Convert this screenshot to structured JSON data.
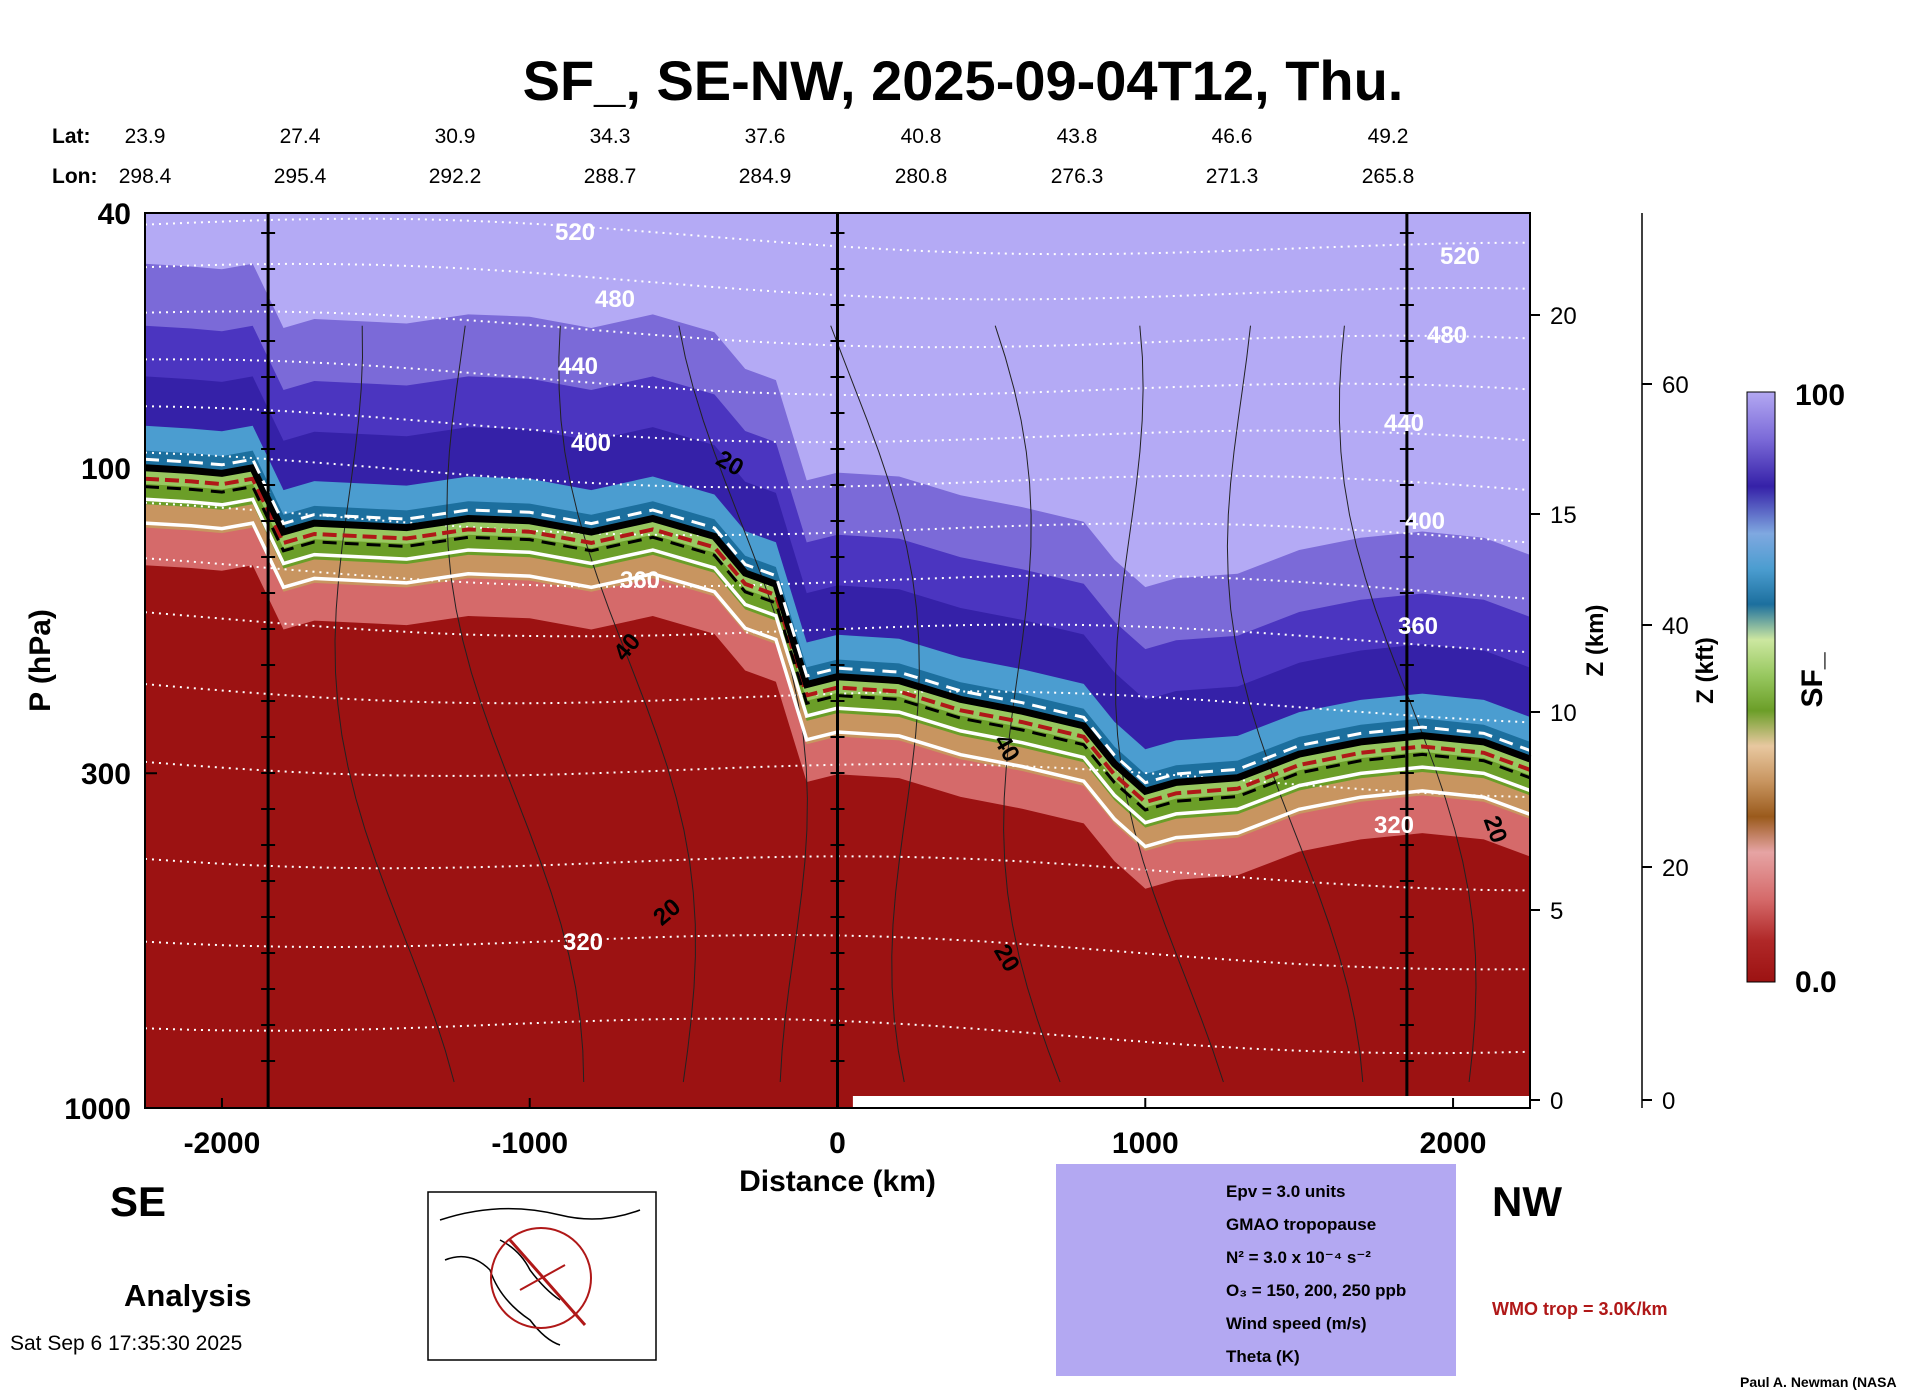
{
  "title": "SF_, SE-NW, 2025-09-04T12, Thu.",
  "header": {
    "lat_label": "Lat:",
    "lon_label": "Lon:",
    "lat": [
      "23.9",
      "27.4",
      "30.9",
      "34.3",
      "37.6",
      "40.8",
      "43.8",
      "46.6",
      "49.2"
    ],
    "lon": [
      "298.4",
      "295.4",
      "292.2",
      "288.7",
      "284.9",
      "280.8",
      "276.3",
      "271.3",
      "265.8"
    ]
  },
  "chart_data": {
    "type": "heatmap",
    "xlabel": "Distance (km)",
    "ylabel": "P (hPa)",
    "y2label": "Z (km)",
    "y3label": "Z (kft)",
    "xlim": [
      -2250,
      2250
    ],
    "ylim": [
      1000,
      40
    ],
    "yscale": "log",
    "x_ticks": [
      "-2000",
      "-1000",
      "0",
      "1000",
      "2000"
    ],
    "y_ticks": [
      "40",
      "100",
      "300",
      "1000"
    ],
    "z_km_ticks": [
      "20",
      "15",
      "10",
      "5",
      "0"
    ],
    "z_kft_ticks": [
      "60",
      "40",
      "20",
      "0"
    ],
    "vertical_markers_km": [
      -1850,
      0,
      1850
    ],
    "colorbar": {
      "label": "SF_",
      "max_label": "100",
      "min_label": "0.0"
    },
    "theta_contour_labels": [
      "520",
      "480",
      "440",
      "400",
      "360",
      "320"
    ],
    "wind_contour_labels": [
      "20",
      "40"
    ],
    "tropopause_pressure_hpa": [
      {
        "x": -2250,
        "p": 100
      },
      {
        "x": -2100,
        "p": 101
      },
      {
        "x": -2000,
        "p": 102
      },
      {
        "x": -1900,
        "p": 100
      },
      {
        "x": -1800,
        "p": 126
      },
      {
        "x": -1700,
        "p": 122
      },
      {
        "x": -1400,
        "p": 124
      },
      {
        "x": -1200,
        "p": 120
      },
      {
        "x": -1000,
        "p": 121
      },
      {
        "x": -800,
        "p": 126
      },
      {
        "x": -600,
        "p": 120
      },
      {
        "x": -400,
        "p": 128
      },
      {
        "x": -300,
        "p": 146
      },
      {
        "x": -200,
        "p": 152
      },
      {
        "x": -100,
        "p": 218
      },
      {
        "x": 0,
        "p": 212
      },
      {
        "x": 200,
        "p": 215
      },
      {
        "x": 400,
        "p": 230
      },
      {
        "x": 600,
        "p": 240
      },
      {
        "x": 800,
        "p": 253
      },
      {
        "x": 900,
        "p": 290
      },
      {
        "x": 1000,
        "p": 320
      },
      {
        "x": 1100,
        "p": 310
      },
      {
        "x": 1300,
        "p": 305
      },
      {
        "x": 1500,
        "p": 280
      },
      {
        "x": 1700,
        "p": 268
      },
      {
        "x": 1900,
        "p": 262
      },
      {
        "x": 2100,
        "p": 268
      },
      {
        "x": 2250,
        "p": 285
      }
    ]
  },
  "region_left": "SE",
  "region_right": "NW",
  "analysis_label": "Analysis",
  "legend": {
    "items": [
      {
        "label": "Epv = 3.0 units"
      },
      {
        "label": "GMAO tropopause"
      },
      {
        "label": "N² = 3.0 x 10⁻⁴ s⁻²"
      },
      {
        "label": "O₃ = 150, 200, 250 ppb"
      },
      {
        "label": "Wind speed (m/s)"
      },
      {
        "label": "Theta (K)"
      }
    ]
  },
  "wmo_label": "WMO trop = 3.0K/km",
  "timestamp": "Sat Sep  6 17:35:30 2025",
  "credit": "Paul A. Newman (NASA",
  "colors": {
    "legend_bg": "#b3a8f2",
    "wmo": "#b01818",
    "troposphere": "#9c1212",
    "stratosphere_top": "#b4aaf5"
  }
}
